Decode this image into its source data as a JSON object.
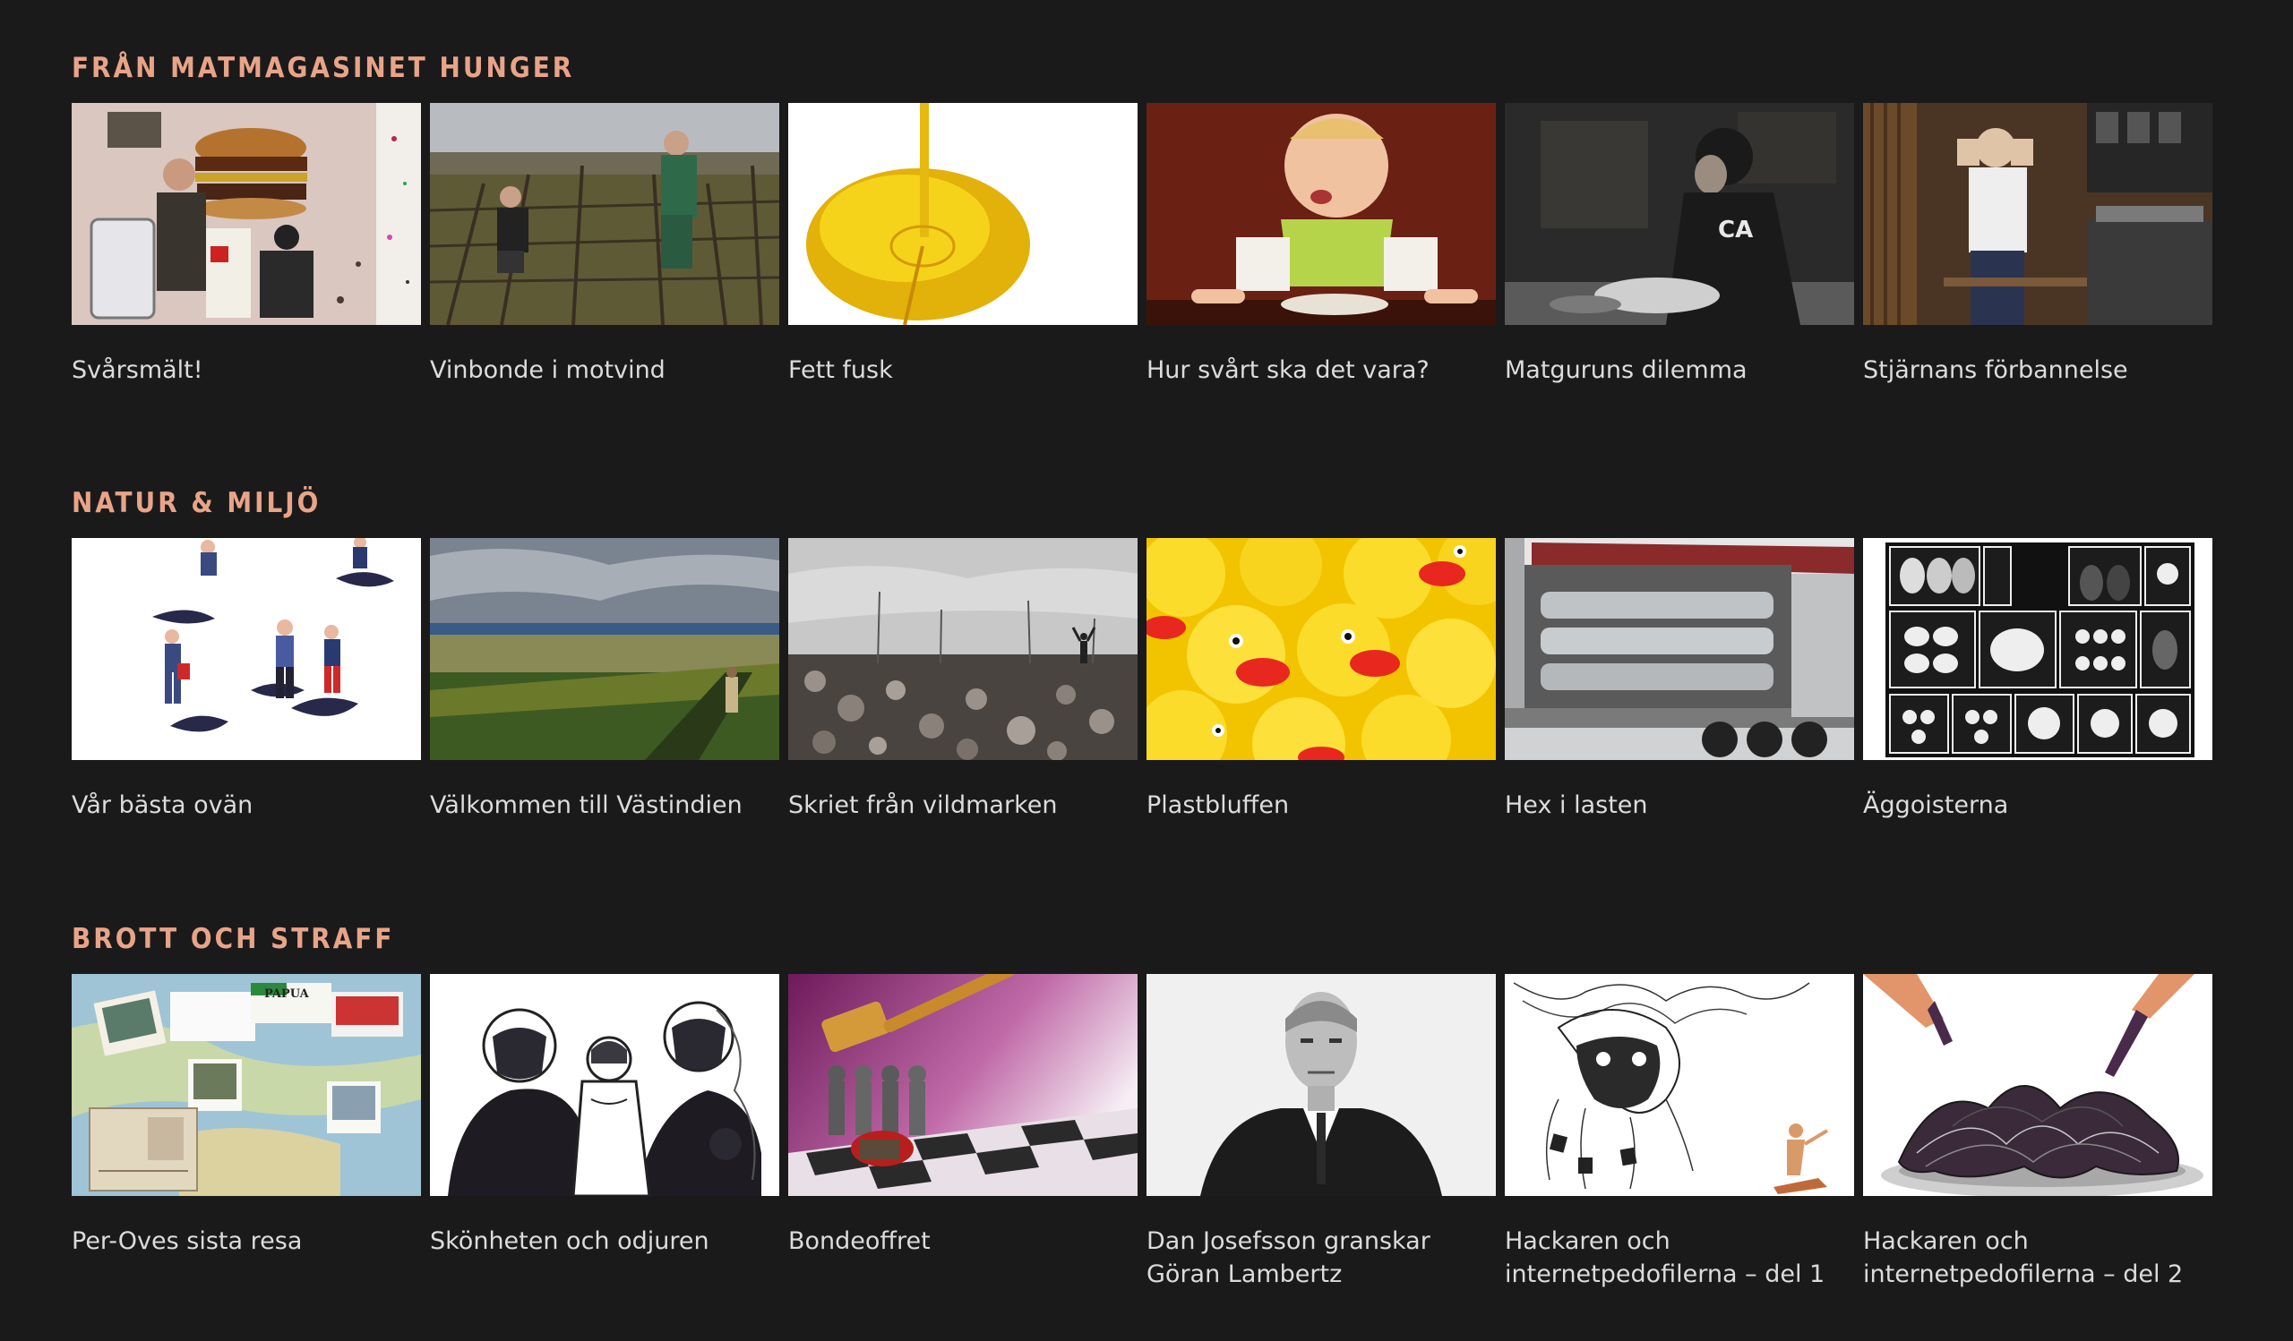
{
  "sections": [
    {
      "title": "FRÅN MATMAGASINET HUNGER",
      "items": [
        {
          "caption": "Svårsmält!"
        },
        {
          "caption": "Vinbonde i motvind"
        },
        {
          "caption": "Fett fusk"
        },
        {
          "caption": "Hur svårt ska det vara?"
        },
        {
          "caption": "Matguruns dilemma"
        },
        {
          "caption": "Stjärnans förbannelse"
        }
      ]
    },
    {
      "title": "NATUR & MILJÖ",
      "items": [
        {
          "caption": "Vår bästa ovän"
        },
        {
          "caption": "Välkommen till Västindien"
        },
        {
          "caption": "Skriet från vildmarken"
        },
        {
          "caption": "Plastbluffen"
        },
        {
          "caption": "Hex i lasten"
        },
        {
          "caption": "Äggoisterna"
        }
      ]
    },
    {
      "title": "BROTT OCH STRAFF",
      "items": [
        {
          "caption": "Per-Oves sista resa"
        },
        {
          "caption": "Skönheten och odjuren"
        },
        {
          "caption": "Bondeoffret"
        },
        {
          "caption": "Dan Josefsson granskar Göran Lambertz"
        },
        {
          "caption": "Hackaren och internetpedofilerna – del 1"
        },
        {
          "caption": "Hackaren och internetpedofilerna – del 2"
        }
      ]
    }
  ]
}
